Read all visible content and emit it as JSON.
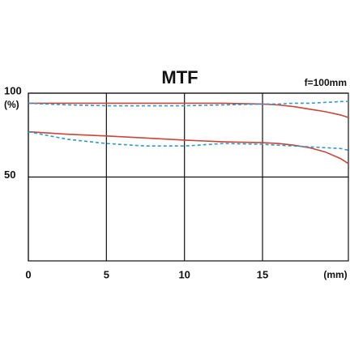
{
  "chart_data": {
    "type": "line",
    "title": "MTF",
    "subtitle": "f=100mm",
    "xlabel": "(mm)",
    "ylabel": "(%)",
    "x": [
      0,
      2.5,
      5,
      7.5,
      10,
      12.5,
      15,
      16,
      17,
      18,
      19,
      20,
      20.5
    ],
    "series": [
      {
        "color": "#c8453a",
        "dashed": false,
        "values": [
          94,
          94,
          94,
          94,
          94,
          94,
          93.5,
          93,
          92,
          90.5,
          89,
          87,
          85.5
        ]
      },
      {
        "color": "#3399cc",
        "dashed": true,
        "values": [
          94,
          93,
          92.5,
          92.5,
          92.5,
          93,
          93.5,
          93.5,
          94,
          94,
          94.5,
          95,
          95
        ]
      },
      {
        "color": "#c8453a",
        "dashed": false,
        "values": [
          77,
          75.5,
          74.5,
          73.3,
          72,
          71,
          70.5,
          70,
          69,
          67.5,
          65,
          61,
          58
        ]
      },
      {
        "color": "#3399cc",
        "dashed": true,
        "values": [
          77,
          72.5,
          70,
          68.5,
          68.5,
          70,
          69.5,
          69,
          68.5,
          68,
          67.5,
          67,
          66
        ]
      }
    ],
    "xlim": [
      0,
      20.5
    ],
    "xticks": [
      0,
      5,
      10,
      15
    ],
    "ylim": [
      0,
      100
    ],
    "yticks": [
      50,
      100
    ],
    "grid": true
  }
}
